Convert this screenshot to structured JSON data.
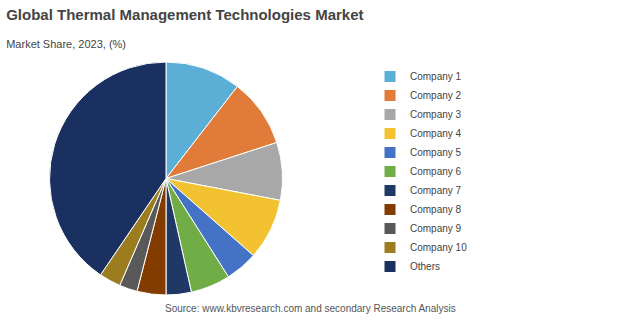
{
  "chart_data": {
    "type": "pie",
    "title": "Global Thermal Management Technologies Market",
    "subtitle": "Market Share, 2023, (%)",
    "annotations": [
      "Source: www.kbvresearch.com and secondary Research Analysis"
    ],
    "categories": [
      "Company 1",
      "Company 2",
      "Company 3",
      "Company 4",
      "Company 5",
      "Company 6",
      "Company 7",
      "Company 8",
      "Company 9",
      "Company 10",
      "Others"
    ],
    "values": [
      10.5,
      9.5,
      8.0,
      8.5,
      4.5,
      5.5,
      3.5,
      4.0,
      2.5,
      3.0,
      40.5
    ],
    "colors": [
      "#5BAFD6",
      "#E07B39",
      "#A8A8A8",
      "#F2C230",
      "#4472C4",
      "#70AD47",
      "#1F3864",
      "#833C00",
      "#595959",
      "#9B7D20",
      "#1A3060"
    ],
    "legend": "right",
    "data_labels": false
  }
}
